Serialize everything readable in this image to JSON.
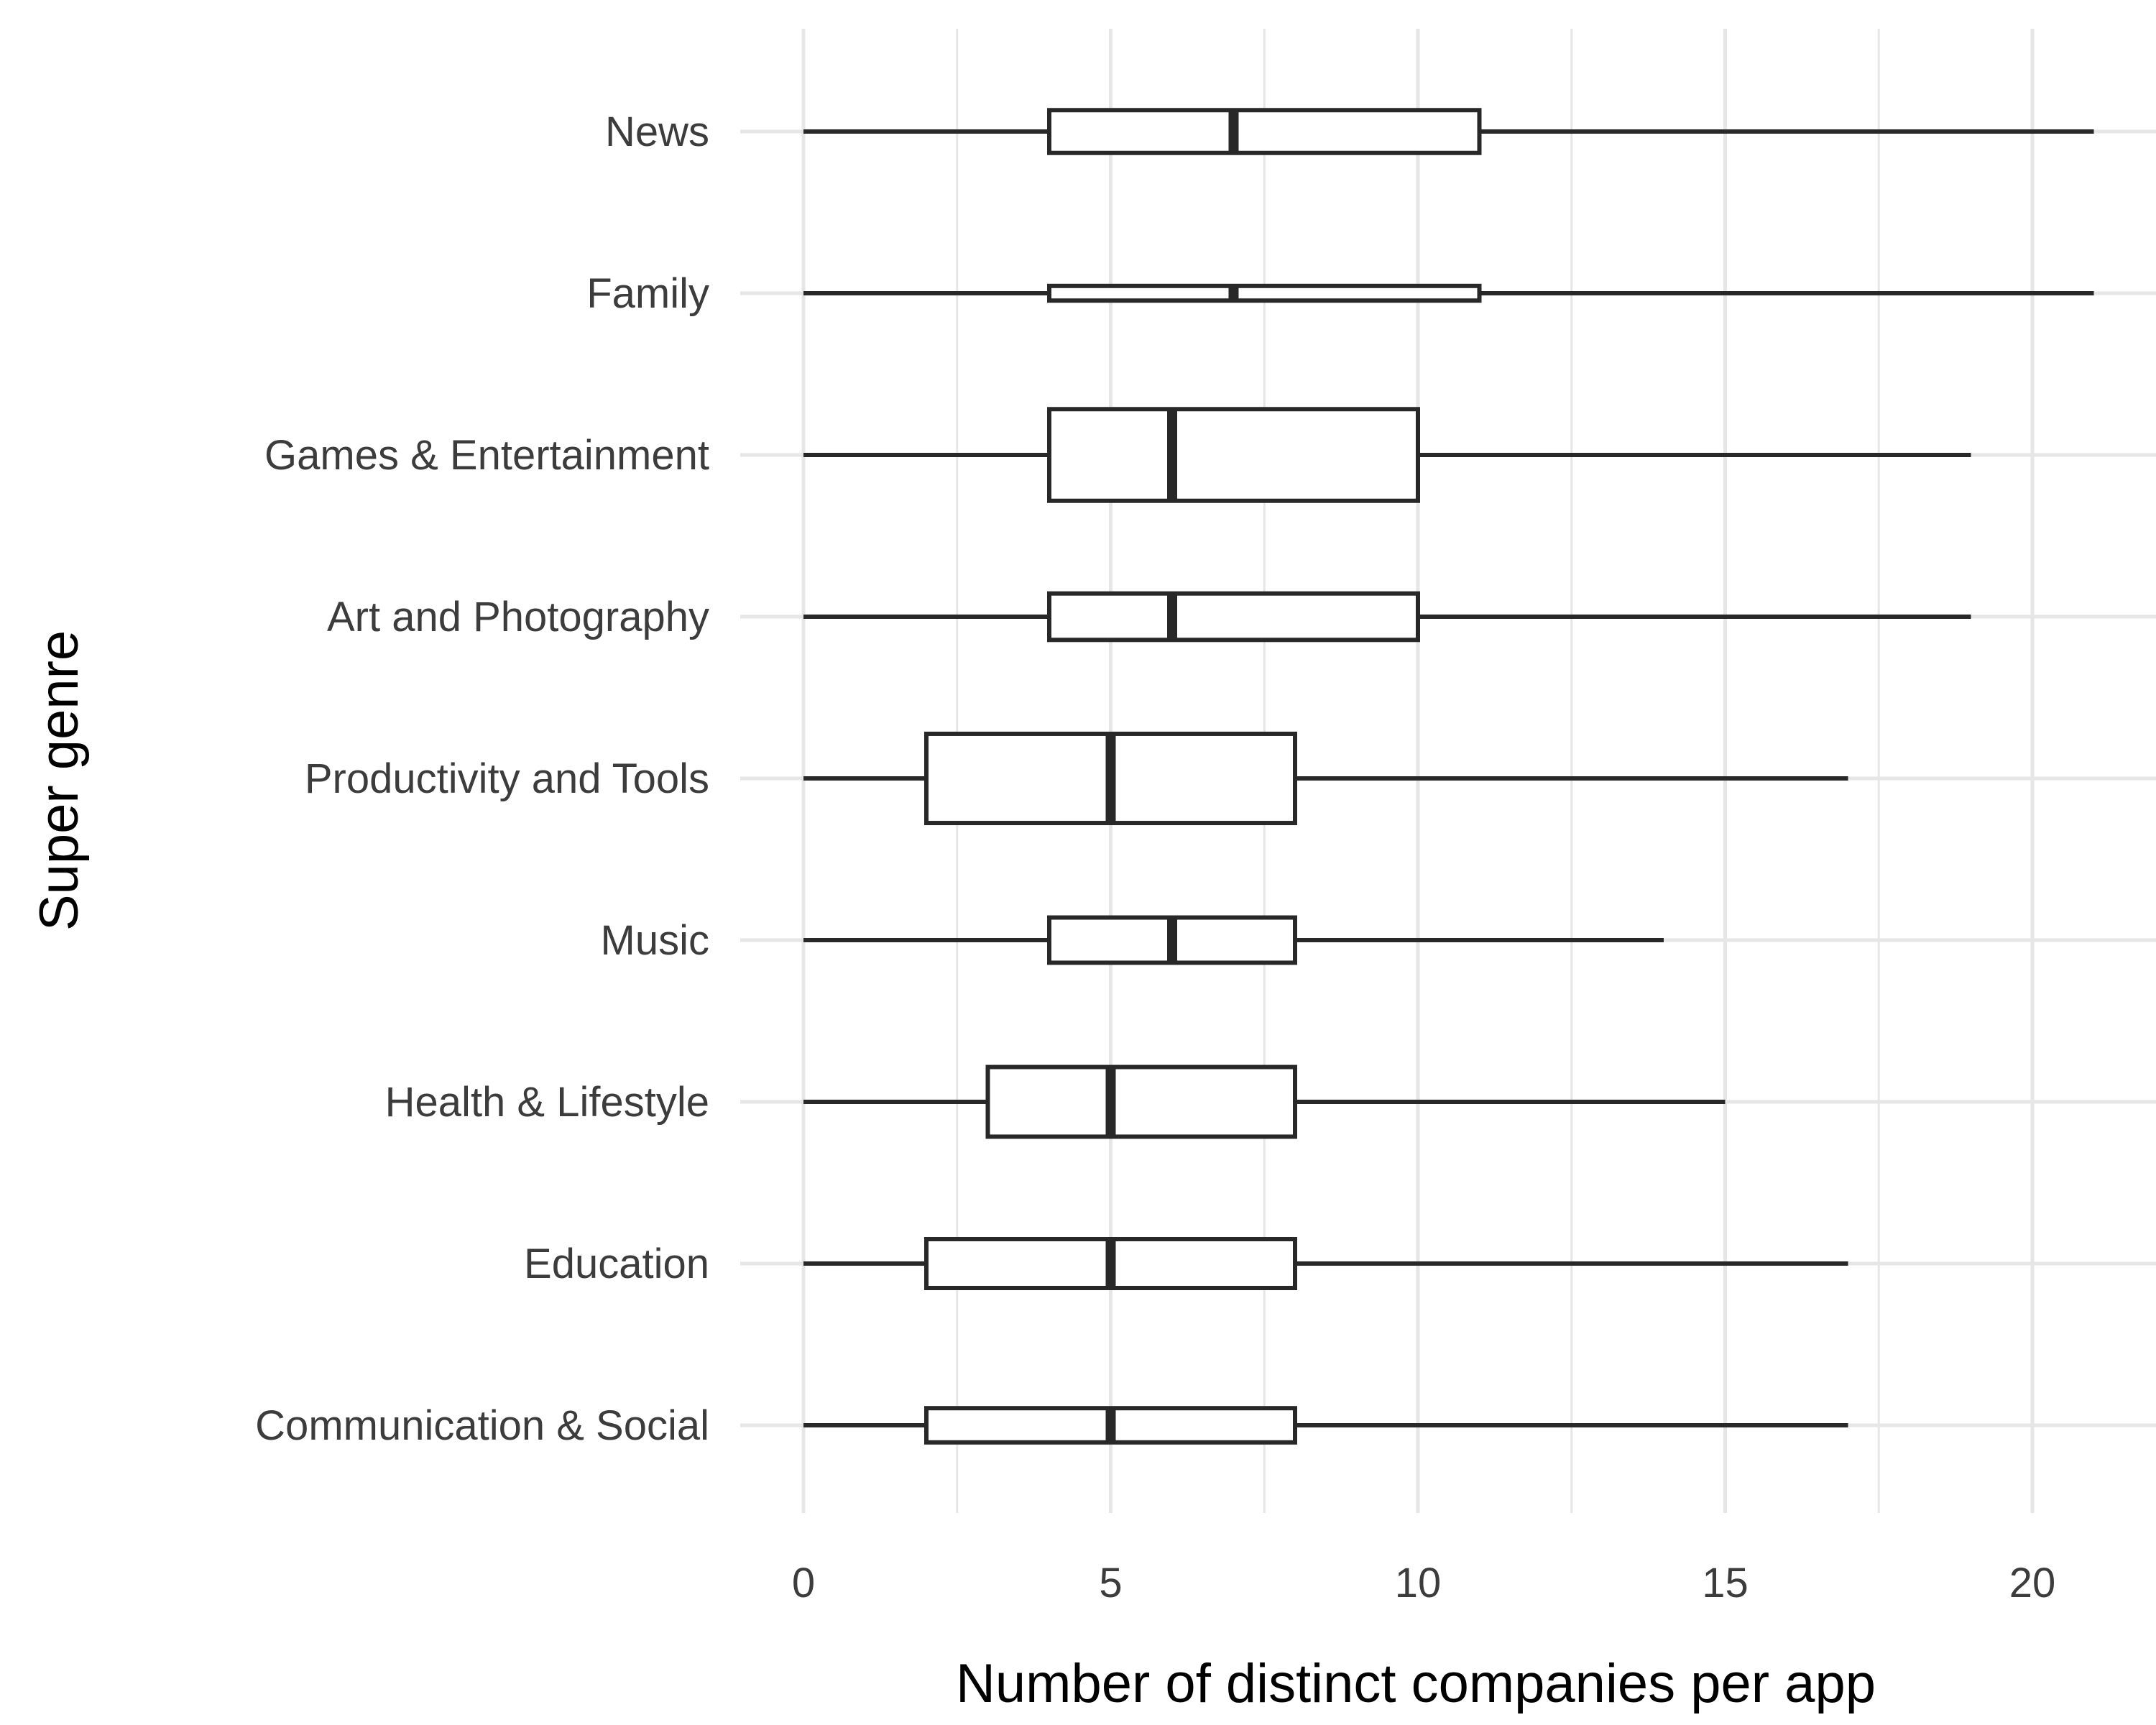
{
  "chart_data": {
    "type": "boxplot",
    "orientation": "horizontal",
    "xlabel": "Number of distinct companies per app",
    "ylabel": "Super genre",
    "xlim": [
      -1,
      22
    ],
    "xticks": [
      0,
      5,
      10,
      15,
      20
    ],
    "grid": true,
    "legend": "none",
    "colors": {
      "grid": "#e6e6e6",
      "box_stroke": "#282828",
      "box_fill": "#ffffff",
      "tick_label": "#3c3c3c"
    },
    "categories": [
      "News",
      "Family",
      "Games & Entertainment",
      "Art and Photography",
      "Productivity and Tools",
      "Music",
      "Health & Lifestyle",
      "Education",
      "Communication & Social"
    ],
    "boxes": [
      {
        "category": "News",
        "min": 0,
        "q1": 4,
        "median": 7,
        "q3": 11,
        "max": 21,
        "relative_width": 0.35
      },
      {
        "category": "Family",
        "min": 0,
        "q1": 4,
        "median": 7,
        "q3": 11,
        "max": 21,
        "relative_width": 0.12
      },
      {
        "category": "Games & Entertainment",
        "min": 0,
        "q1": 4,
        "median": 6,
        "q3": 10,
        "max": 19,
        "relative_width": 0.75
      },
      {
        "category": "Art and Photography",
        "min": 0,
        "q1": 4,
        "median": 6,
        "q3": 10,
        "max": 19,
        "relative_width": 0.38
      },
      {
        "category": "Productivity and Tools",
        "min": 0,
        "q1": 2,
        "median": 5,
        "q3": 8,
        "max": 17,
        "relative_width": 0.73
      },
      {
        "category": "Music",
        "min": 0,
        "q1": 4,
        "median": 6,
        "q3": 8,
        "max": 14,
        "relative_width": 0.37
      },
      {
        "category": "Health & Lifestyle",
        "min": 0,
        "q1": 3,
        "median": 5,
        "q3": 8,
        "max": 15,
        "relative_width": 0.57
      },
      {
        "category": "Education",
        "min": 0,
        "q1": 2,
        "median": 5,
        "q3": 8,
        "max": 17,
        "relative_width": 0.4
      },
      {
        "category": "Communication & Social",
        "min": 0,
        "q1": 2,
        "median": 5,
        "q3": 8,
        "max": 17,
        "relative_width": 0.28
      }
    ]
  }
}
